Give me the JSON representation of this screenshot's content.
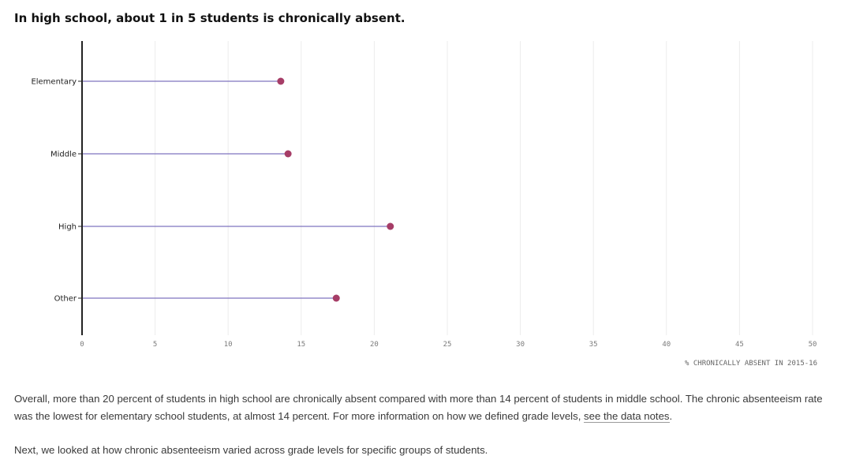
{
  "chart_data": {
    "type": "lollipop",
    "title": "In high school, about 1 in 5 students is chronically absent.",
    "xlabel": "% CHRONICALLY ABSENT IN 2015-16",
    "ylabel": "",
    "xlim": [
      0,
      50
    ],
    "x_ticks": [
      0,
      5,
      10,
      15,
      20,
      25,
      30,
      35,
      40,
      45,
      50
    ],
    "categories": [
      "Elementary",
      "Middle",
      "High",
      "Other"
    ],
    "values": [
      13.6,
      14.1,
      21.1,
      17.4
    ],
    "grid": true,
    "colors": {
      "stem": "#7f73bf",
      "dot": "#a63d67",
      "grid": "#ececec",
      "axis": "#222222"
    }
  },
  "body": {
    "paragraph1_text": "Overall, more than 20 percent of students in high school are chronically absent compared with more than 14 percent of students in middle school. The chronic absenteeism rate was the lowest for elementary school students, at almost 14 percent. For more information on how we defined grade levels, ",
    "paragraph1_link": "see the data notes",
    "paragraph1_end": ".",
    "paragraph2": "Next, we looked at how chronic absenteeism varied across grade levels for specific groups of students."
  }
}
